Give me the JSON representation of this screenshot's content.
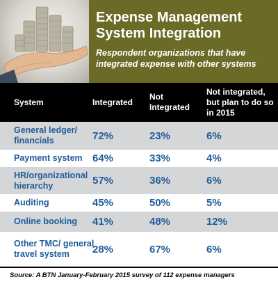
{
  "header": {
    "title": "Expense Management System Integration",
    "subtitle": "Respondent organizations that have integrated expense with other systems"
  },
  "table": {
    "columns": [
      "System",
      "Integrated",
      "Not Integrated",
      "Not integrated, but plan to do so in 2015"
    ],
    "rows": [
      {
        "system": "General ledger/ financials",
        "integrated": "72%",
        "not_integrated": "23%",
        "plan_2015": "6%"
      },
      {
        "system": "Payment system",
        "integrated": "64%",
        "not_integrated": "33%",
        "plan_2015": "4%"
      },
      {
        "system": "HR/organizational hierarchy",
        "integrated": "57%",
        "not_integrated": "36%",
        "plan_2015": "6%"
      },
      {
        "system": "Auditing",
        "integrated": "45%",
        "not_integrated": "50%",
        "plan_2015": "5%"
      },
      {
        "system": "Online booking",
        "integrated": "41%",
        "not_integrated": "48%",
        "plan_2015": "12%"
      },
      {
        "system": "Other TMC/ general travel system",
        "integrated": "28%",
        "not_integrated": "67%",
        "plan_2015": "6%"
      }
    ]
  },
  "source": "Source: A BTN January-February 2015 survey of 112 expense managers",
  "colors": {
    "header_bg": "#6b6a27",
    "column_header_bg": "#000000",
    "row_text": "#1f5c99",
    "row_shade": "#d5d6d8"
  }
}
